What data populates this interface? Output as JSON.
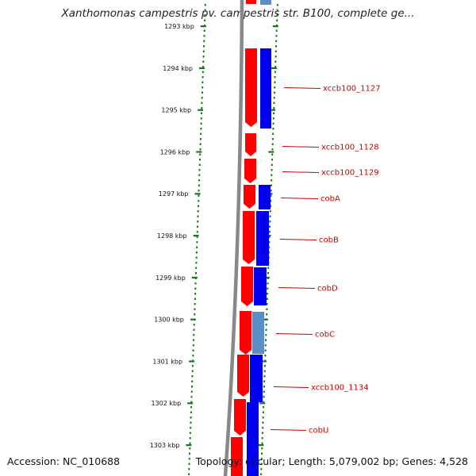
{
  "title": "Xanthomonas campestris pv. campestris str. B100, complete ge...",
  "footer": {
    "accession": "Accession: NC_010688",
    "topology": "Topology: circular; Length: 5,079,002 bp; Genes: 4,528"
  },
  "axis": {
    "unit": "kbp",
    "ticks": [
      "1293 kbp",
      "1294 kbp",
      "1295 kbp",
      "1296 kbp",
      "1297 kbp",
      "1298 kbp",
      "1299 kbp",
      "1300 kbp",
      "1301 kbp",
      "1302 kbp",
      "1303 kbp"
    ]
  },
  "genes": [
    {
      "label": "xccb100_1127"
    },
    {
      "label": "xccb100_1128"
    },
    {
      "label": "xccb100_1129"
    },
    {
      "label": "cobA"
    },
    {
      "label": "cobB"
    },
    {
      "label": "cobD"
    },
    {
      "label": "cobC"
    },
    {
      "label": "xccb100_1134"
    },
    {
      "label": "cobU"
    }
  ],
  "colors": {
    "forward_strand": "#ff0000",
    "reverse_strand": "#0000ee",
    "pseudo_strand": "#5a8ec4",
    "backbone": "#888888",
    "ticks": "#1a7a1a",
    "label": "#cc0000"
  }
}
